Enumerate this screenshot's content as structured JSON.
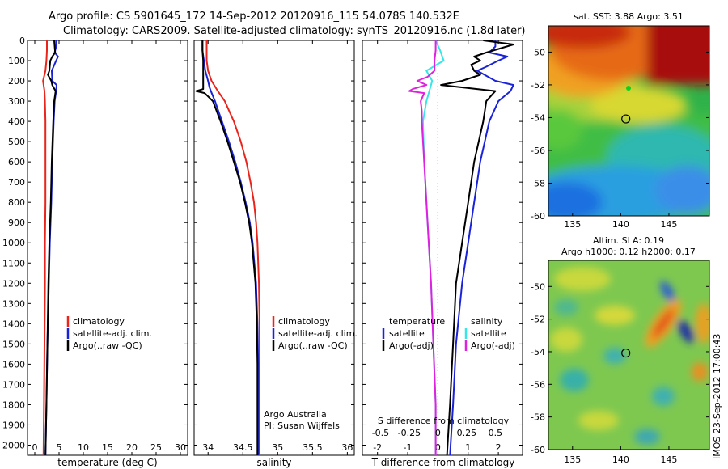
{
  "title_line1": "Argo profile: CS 5901645_172 14-Sep-2012 20120916_115 54.078S 140.532E",
  "title_line2": "Climatology: CARS2009. Satellite-adjusted climatology: synTS_20120916.nc (1.8d later)",
  "side_label": "IMOS 23-Sep-2012 17:00:43",
  "colors": {
    "climatology": "#e8241c",
    "satellite": "#1a22d8",
    "argo": "#000000",
    "salinity_satellite": "#38e6e6",
    "salinity_argo": "#e020e0"
  },
  "chart_data": [
    {
      "type": "line",
      "xlabel": "temperature (deg C)",
      "x_ticks": [
        "0",
        "5",
        "10",
        "15",
        "20",
        "25",
        "30"
      ],
      "y_ticks": [
        "0",
        "100",
        "200",
        "300",
        "400",
        "500",
        "600",
        "700",
        "800",
        "900",
        "1000",
        "1100",
        "1200",
        "1300",
        "1400",
        "1500",
        "1600",
        "1700",
        "1800",
        "1900",
        "2000"
      ],
      "xlim": [
        -1.5,
        31.5
      ],
      "ylim": [
        2050,
        0
      ],
      "legend": [
        "climatology",
        "satellite-adj. clim.",
        "Argo(..raw -QC)"
      ],
      "series": [
        {
          "name": "climatology",
          "depth": [
            0,
            50,
            100,
            150,
            180,
            200,
            250,
            300,
            400,
            600,
            800,
            1000,
            1200,
            1500,
            1800,
            2050
          ],
          "values": [
            2.5,
            2.5,
            2.4,
            2.2,
            1.9,
            1.7,
            2.0,
            2.1,
            2.2,
            2.2,
            2.2,
            2.1,
            2.1,
            2.0,
            1.9,
            1.8
          ]
        },
        {
          "name": "satellite-adj. clim.",
          "depth": [
            0,
            30,
            60,
            80,
            100,
            150,
            200,
            220,
            250,
            300,
            400,
            600,
            800,
            1000,
            1200,
            1500,
            1800,
            2050
          ],
          "values": [
            4.4,
            4.4,
            4.1,
            4.8,
            4.4,
            3.5,
            3.6,
            4.5,
            4.4,
            4.1,
            3.9,
            3.6,
            3.4,
            3.1,
            2.9,
            2.6,
            2.4,
            2.2
          ]
        },
        {
          "name": "Argo(..raw -QC)",
          "depth": [
            0,
            30,
            60,
            80,
            100,
            150,
            170,
            200,
            220,
            250,
            300,
            400,
            600,
            800,
            1000,
            1200,
            1500,
            1800,
            2050
          ],
          "values": [
            4.0,
            4.1,
            4.2,
            3.6,
            3.2,
            3.0,
            2.7,
            3.4,
            3.6,
            4.3,
            4.0,
            3.8,
            3.5,
            3.3,
            3.0,
            2.8,
            2.6,
            2.4,
            2.2
          ]
        }
      ]
    },
    {
      "type": "line",
      "xlabel": "salinity",
      "x_ticks": [
        "34",
        "34.5",
        "35",
        "35.5",
        "36"
      ],
      "xlim": [
        33.8,
        36.1
      ],
      "ylim": [
        2050,
        0
      ],
      "legend": [
        "climatology",
        "satellite-adj. clim.",
        "Argo(..raw -QC)"
      ],
      "annotation": [
        "Argo Australia",
        "PI: Susan Wijffels"
      ],
      "series": [
        {
          "name": "climatology",
          "depth": [
            0,
            100,
            150,
            200,
            250,
            300,
            400,
            500,
            600,
            700,
            800,
            900,
            1000,
            1200,
            1400,
            1600,
            1800,
            2050
          ],
          "values": [
            33.98,
            33.98,
            34.0,
            34.05,
            34.14,
            34.24,
            34.37,
            34.47,
            34.55,
            34.61,
            34.66,
            34.69,
            34.71,
            34.73,
            34.74,
            34.74,
            34.74,
            34.74
          ]
        },
        {
          "name": "satellite-adj. clim.",
          "depth": [
            0,
            50,
            100,
            150,
            200,
            230,
            250,
            300,
            400,
            500,
            600,
            700,
            800,
            900,
            1000,
            1200,
            1400,
            1600,
            1800,
            2050
          ],
          "values": [
            33.92,
            33.92,
            33.94,
            33.96,
            34.0,
            34.02,
            34.04,
            34.1,
            34.2,
            34.3,
            34.39,
            34.47,
            34.54,
            34.6,
            34.64,
            34.69,
            34.71,
            34.72,
            34.72,
            34.72
          ]
        },
        {
          "name": "Argo(..raw -QC)",
          "depth": [
            0,
            50,
            100,
            150,
            200,
            240,
            250,
            260,
            300,
            400,
            500,
            600,
            700,
            800,
            900,
            1000,
            1200,
            1400,
            1600,
            1800,
            2050
          ],
          "values": [
            33.92,
            33.92,
            33.93,
            33.93,
            33.93,
            33.93,
            33.83,
            33.95,
            34.07,
            34.18,
            34.28,
            34.37,
            34.46,
            34.53,
            34.59,
            34.63,
            34.68,
            34.7,
            34.71,
            34.71,
            34.71
          ]
        }
      ]
    },
    {
      "type": "line",
      "xlabel": "T difference from climatology",
      "x_ticks": [
        "-2",
        "-1",
        "0",
        "1",
        "2"
      ],
      "xlim": [
        -2.5,
        2.8
      ],
      "xlabel_top": "S difference from climatology",
      "x_ticks_top": [
        "-0.5",
        "-0.25",
        "0",
        "0.25",
        "0.5"
      ],
      "xlim_top": [
        -0.658,
        0.737
      ],
      "ylim": [
        2050,
        0
      ],
      "legend_temperature": {
        "title": "temperature",
        "items": [
          "satellite",
          "Argo(-adj)"
        ]
      },
      "legend_salinity": {
        "title": "salinity",
        "items": [
          "satellite",
          "Argo(-adj)"
        ]
      },
      "series": [
        {
          "name": "temperature satellite",
          "depth": [
            0,
            30,
            60,
            80,
            100,
            130,
            150,
            200,
            220,
            250,
            300,
            400,
            600,
            800,
            1000,
            1200,
            1500,
            1800,
            2050
          ],
          "values": [
            1.9,
            1.9,
            1.7,
            2.3,
            2.0,
            1.6,
            1.3,
            1.9,
            2.5,
            2.4,
            2.0,
            1.7,
            1.4,
            1.2,
            1.0,
            0.8,
            0.6,
            0.5,
            0.4
          ]
        },
        {
          "name": "temperature Argo(-adj)",
          "depth": [
            0,
            20,
            60,
            80,
            100,
            120,
            150,
            170,
            200,
            220,
            250,
            300,
            400,
            600,
            800,
            1000,
            1200,
            1500,
            1800,
            2050
          ],
          "values": [
            1.5,
            2.5,
            1.6,
            1.2,
            1.4,
            1.1,
            1.2,
            1.4,
            0.8,
            0.1,
            1.9,
            1.6,
            1.5,
            1.2,
            1.0,
            0.8,
            0.6,
            0.5,
            0.4,
            0.3
          ]
        },
        {
          "name": "salinity satellite",
          "depth": [
            0,
            50,
            100,
            150,
            200,
            300,
            400,
            600,
            800,
            1000,
            1200,
            1500,
            1800,
            2050
          ],
          "values": [
            -0.02,
            0.02,
            0.05,
            -0.1,
            -0.05,
            -0.1,
            -0.13,
            -0.12,
            -0.1,
            -0.08,
            -0.06,
            -0.04,
            -0.02,
            -0.02
          ]
        },
        {
          "name": "salinity Argo(-adj)",
          "depth": [
            0,
            50,
            100,
            150,
            180,
            200,
            220,
            240,
            250,
            260,
            300,
            350,
            400,
            600,
            800,
            1000,
            1200,
            1500,
            1800,
            2050
          ],
          "values": [
            -0.02,
            -0.02,
            -0.03,
            -0.03,
            -0.09,
            -0.18,
            -0.1,
            -0.22,
            -0.25,
            -0.12,
            -0.15,
            -0.14,
            -0.14,
            -0.12,
            -0.1,
            -0.08,
            -0.06,
            -0.04,
            -0.02,
            -0.02
          ]
        }
      ]
    },
    {
      "type": "heatmap",
      "title": "sat. SST: 3.88 Argo: 3.51",
      "x_ticks": [
        "135",
        "140",
        "145"
      ],
      "y_ticks": [
        "-50",
        "-52",
        "-54",
        "-56",
        "-58",
        "-60"
      ],
      "xlim": [
        132.5,
        149.2
      ],
      "ylim": [
        -60,
        -48.4
      ],
      "marker": {
        "x": 140.53,
        "y": -54.08
      }
    },
    {
      "type": "heatmap",
      "title_line1": "Altim. SLA: 0.19",
      "title_line2": "Argo h1000: 0.12 h2000: 0.17",
      "x_ticks": [
        "135",
        "140",
        "145"
      ],
      "y_ticks": [
        "-50",
        "-52",
        "-54",
        "-56",
        "-58",
        "-60"
      ],
      "xlim": [
        132.5,
        149.2
      ],
      "ylim": [
        -60,
        -48.4
      ],
      "marker": {
        "x": 140.53,
        "y": -54.08
      }
    }
  ]
}
